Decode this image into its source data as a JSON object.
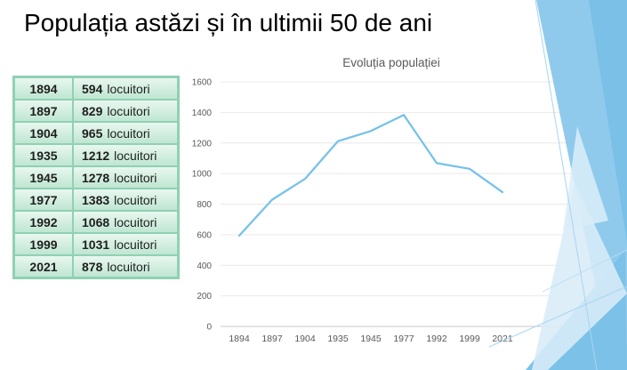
{
  "slide": {
    "title": "Populația astăzi și în ultimii 50 de ani"
  },
  "table": {
    "rows": [
      {
        "year": "1894",
        "count": "594",
        "unit": "locuitori"
      },
      {
        "year": "1897",
        "count": "829",
        "unit": "locuitori"
      },
      {
        "year": "1904",
        "count": "965",
        "unit": "locuitori"
      },
      {
        "year": "1935",
        "count": "1212",
        "unit": "locuitori"
      },
      {
        "year": "1945",
        "count": "1278",
        "unit": "locuitori"
      },
      {
        "year": "1977",
        "count": "1383",
        "unit": "locuitori"
      },
      {
        "year": "1992",
        "count": "1068",
        "unit": "locuitori"
      },
      {
        "year": "1999",
        "count": "1031",
        "unit": "locuitori"
      },
      {
        "year": "2021",
        "count": "878",
        "unit": "locuitori"
      }
    ]
  },
  "chart_data": {
    "type": "line",
    "title": "Evoluția populației",
    "categories": [
      "1894",
      "1897",
      "1904",
      "1935",
      "1945",
      "1977",
      "1992",
      "1999",
      "2021"
    ],
    "values": [
      594,
      829,
      965,
      1212,
      1278,
      1383,
      1068,
      1031,
      878
    ],
    "xlabel": "",
    "ylabel": "",
    "ylim": [
      0,
      1600
    ],
    "ytick_step": 200,
    "grid": true,
    "legend": false,
    "line_color": "#76C1E9",
    "label_color": "#595959",
    "grid_color": "#E9E9E9",
    "axis_color": "#C9C9C9"
  },
  "colors": {
    "accent_blue": "#8FCAEC",
    "accent_blue_dark": "#79BFE5",
    "accent_blue_pale": "#D8ECF8",
    "table_green": "#8FD1B3",
    "title_text": "#000000",
    "chart_text": "#595959"
  }
}
